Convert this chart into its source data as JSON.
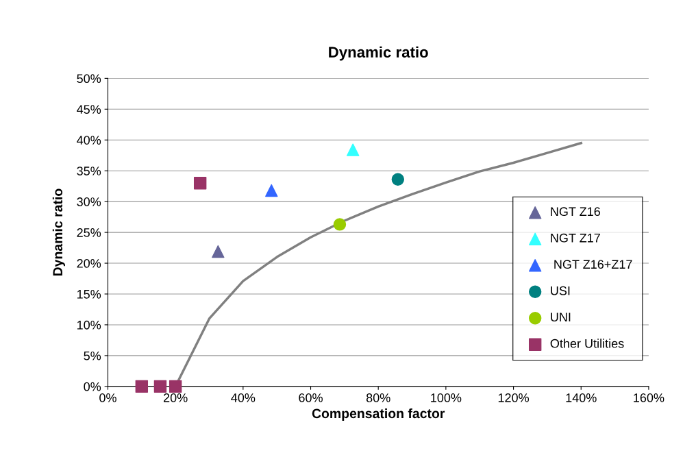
{
  "chart_data": {
    "type": "scatter",
    "title": "Dynamic ratio",
    "xlabel": "Compensation factor",
    "ylabel": "Dynamic ratio",
    "xlim": [
      0,
      160
    ],
    "ylim": [
      0,
      50
    ],
    "xticks": [
      {
        "value": 0,
        "label": "0%"
      },
      {
        "value": 20,
        "label": "20%"
      },
      {
        "value": 40,
        "label": "40%"
      },
      {
        "value": 60,
        "label": "60%"
      },
      {
        "value": 80,
        "label": "80%"
      },
      {
        "value": 100,
        "label": "100%"
      },
      {
        "value": 120,
        "label": "120%"
      },
      {
        "value": 140,
        "label": "140%"
      },
      {
        "value": 160,
        "label": "160%"
      }
    ],
    "yticks": [
      {
        "value": 0,
        "label": "0%"
      },
      {
        "value": 5,
        "label": "5%"
      },
      {
        "value": 10,
        "label": "10%"
      },
      {
        "value": 15,
        "label": "15%"
      },
      {
        "value": 20,
        "label": "20%"
      },
      {
        "value": 25,
        "label": "25%"
      },
      {
        "value": 30,
        "label": "30%"
      },
      {
        "value": 35,
        "label": "35%"
      },
      {
        "value": 40,
        "label": "40%"
      },
      {
        "value": 45,
        "label": "45%"
      },
      {
        "value": 50,
        "label": "50%"
      }
    ],
    "grid": "y",
    "legend": "right",
    "series": [
      {
        "type": "line",
        "color": "#808080",
        "marker": "none",
        "x": [
          20,
          30,
          40,
          50,
          60,
          70,
          80,
          90,
          100,
          110,
          120,
          130,
          140
        ],
        "values": [
          0,
          11,
          17.1,
          21,
          24.2,
          26.9,
          29.2,
          31.2,
          33.1,
          34.9,
          36.3,
          37.9,
          39.5
        ]
      },
      {
        "name": "NGT Z16",
        "color": "#666699",
        "marker": "triangle",
        "x": [
          32.6
        ],
        "values": [
          21.9
        ]
      },
      {
        "name": "NGT Z17",
        "color": "#33ffff",
        "marker": "triangle",
        "x": [
          72.5
        ],
        "values": [
          38.4
        ]
      },
      {
        "name": " NGT Z16+Z17",
        "color": "#3366ff",
        "marker": "triangle",
        "x": [
          48.4
        ],
        "values": [
          31.8
        ]
      },
      {
        "name": "USI",
        "color": "#008080",
        "marker": "circle",
        "x": [
          85.8
        ],
        "values": [
          33.6
        ]
      },
      {
        "name": "UNI",
        "color": "#99cc00",
        "marker": "circle",
        "x": [
          68.6
        ],
        "values": [
          26.3
        ]
      },
      {
        "name": "Other Utilities",
        "color": "#993366",
        "marker": "square",
        "x": [
          10,
          15.5,
          20,
          27.3
        ],
        "values": [
          0,
          0,
          0,
          33
        ]
      }
    ]
  }
}
